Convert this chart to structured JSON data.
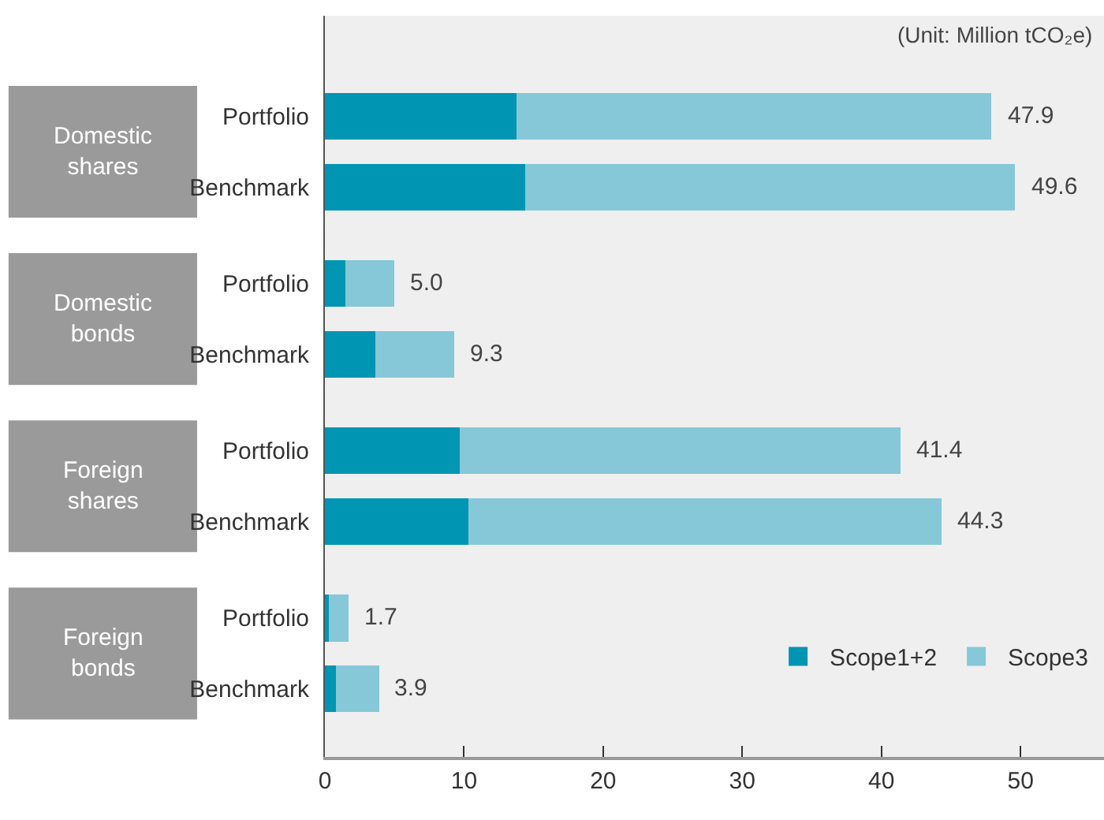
{
  "chart_data": {
    "type": "bar",
    "orientation": "horizontal",
    "stacked": true,
    "categories": [
      "Portfolio",
      "Benchmark",
      "Portfolio",
      "Benchmark",
      "Portfolio",
      "Benchmark",
      "Portfolio",
      "Benchmark"
    ],
    "series": [
      {
        "name": "Scope1+2",
        "color": "#0095b3",
        "values": [
          13.8,
          14.4,
          1.5,
          3.6,
          9.7,
          10.3,
          0.3,
          0.8
        ]
      },
      {
        "name": "Scope3",
        "color": "#86c8d8",
        "values": [
          34.1,
          35.2,
          3.5,
          5.7,
          31.7,
          34.0,
          1.4,
          3.1
        ]
      }
    ],
    "totals": [
      "47.9",
      "49.6",
      "5.0",
      "9.3",
      "41.4",
      "44.3",
      "1.7",
      "3.9"
    ],
    "annotations": [
      "Domestic shares",
      "Domestic bonds",
      "Foreign shares",
      "Foreign bonds",
      "(Unit: Million tCO₂e)"
    ],
    "xlim": [
      0,
      56
    ],
    "xticks": [
      0,
      10,
      20,
      30,
      40,
      50
    ],
    "grid": false,
    "legend": "bottom right"
  }
}
